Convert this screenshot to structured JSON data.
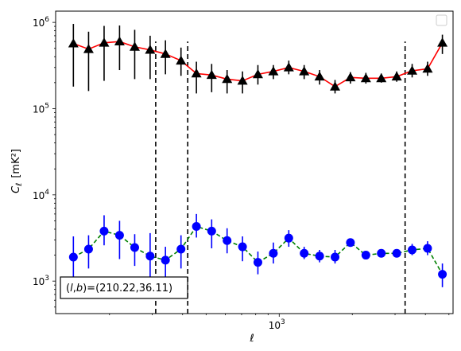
{
  "chart_data": {
    "type": "line",
    "xlabel": "ℓ",
    "ylabel_main": "C",
    "ylabel_sub": "ℓ",
    "ylabel_unit": "[mK²]",
    "x_scale": "log",
    "y_scale": "log",
    "xlim": [
      120,
      5200
    ],
    "ylim": [
      420,
      1350000
    ],
    "x_tick_labels": [
      {
        "value": 1000,
        "base": "10",
        "exp": "3"
      }
    ],
    "y_tick_labels": [
      {
        "value": 1000,
        "base": "10",
        "exp": "3"
      },
      {
        "value": 10000,
        "base": "10",
        "exp": "4"
      },
      {
        "value": 100000,
        "base": "10",
        "exp": "5"
      },
      {
        "value": 1000000,
        "base": "10",
        "exp": "6"
      }
    ],
    "vlines": [
      310,
      420,
      3300
    ],
    "vline_ymin": 420,
    "vline_ymax": 600000,
    "grid": false,
    "legend": "top-right (empty)",
    "annotation": {
      "prefix": "(",
      "var_l": "l",
      "comma": ",",
      "var_b": "b",
      "suffix": ")=(210.22,36.11)"
    },
    "series": [
      {
        "marker": "triangle",
        "line_color": "#ff0000",
        "marker_color": "#000000",
        "dashed": false,
        "x": [
          142,
          164,
          190,
          220,
          254,
          294,
          340,
          394,
          456,
          527,
          610,
          706,
          817,
          946,
          1095,
          1267,
          1467,
          1698,
          1965,
          2275,
          2633,
          3048,
          3528,
          4084,
          4700
        ],
        "y": [
          570000,
          490000,
          580000,
          600000,
          520000,
          480000,
          430000,
          360000,
          255000,
          245000,
          220000,
          210000,
          250000,
          270000,
          300000,
          270000,
          235000,
          180000,
          230000,
          225000,
          225000,
          235000,
          275000,
          290000,
          580000
        ],
        "yerr_low": [
          180000,
          160000,
          210000,
          280000,
          220000,
          220000,
          250000,
          240000,
          150000,
          155000,
          150000,
          150000,
          190000,
          220000,
          250000,
          220000,
          190000,
          150000,
          195000,
          195000,
          200000,
          205000,
          230000,
          240000,
          430000
        ],
        "yerr_high": [
          960000,
          780000,
          910000,
          920000,
          820000,
          700000,
          620000,
          510000,
          350000,
          330000,
          280000,
          270000,
          320000,
          320000,
          360000,
          320000,
          280000,
          215000,
          265000,
          260000,
          255000,
          270000,
          330000,
          350000,
          720000
        ]
      },
      {
        "marker": "circle",
        "line_color": "#008000",
        "marker_color": "#0000ff",
        "dashed": true,
        "x": [
          142,
          164,
          190,
          220,
          254,
          294,
          340,
          394,
          456,
          527,
          610,
          706,
          817,
          946,
          1095,
          1267,
          1467,
          1698,
          1965,
          2275,
          2633,
          3048,
          3528,
          4084,
          4700
        ],
        "y": [
          1900,
          2350,
          3800,
          3400,
          2450,
          1950,
          1750,
          2350,
          4300,
          3800,
          2950,
          2500,
          1650,
          2100,
          3150,
          2100,
          1950,
          1900,
          2800,
          2000,
          2100,
          2100,
          2300,
          2400,
          1200
        ],
        "yerr_low": [
          1000,
          1400,
          2600,
          1800,
          1500,
          1100,
          1000,
          1400,
          3200,
          2400,
          2100,
          1700,
          1200,
          1600,
          2500,
          1800,
          1650,
          1600,
          2500,
          1850,
          1950,
          1950,
          2000,
          2000,
          850
        ],
        "yerr_high": [
          3300,
          3400,
          5800,
          5000,
          3500,
          3600,
          2500,
          3400,
          6000,
          5200,
          4100,
          3300,
          2200,
          2800,
          3900,
          2500,
          2300,
          2300,
          3100,
          2200,
          2300,
          2300,
          2700,
          2900,
          1600
        ]
      }
    ]
  }
}
